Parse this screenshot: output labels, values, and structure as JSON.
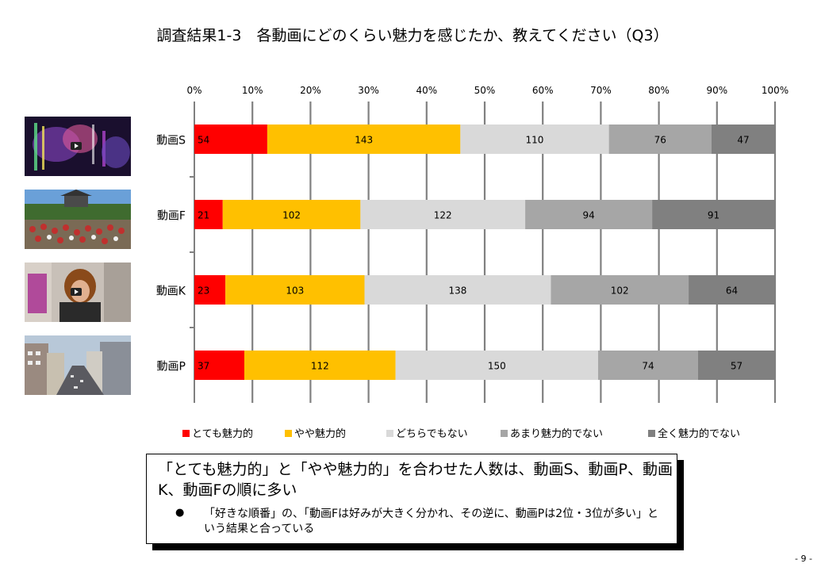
{
  "title": "調査結果1-3　各動画にどのくらい魅力を感じたか、教えてください（Q3）",
  "chart_data": {
    "type": "bar",
    "orientation": "horizontal",
    "stacked": "percent",
    "x_ticks": [
      "0%",
      "10%",
      "20%",
      "30%",
      "40%",
      "50%",
      "60%",
      "70%",
      "80%",
      "90%",
      "100%"
    ],
    "xlim": [
      0,
      100
    ],
    "categories": [
      "動画S",
      "動画F",
      "動画K",
      "動画P"
    ],
    "series": [
      {
        "name": "とても魅力的",
        "color": "#ff0000",
        "values": [
          54,
          21,
          23,
          37
        ]
      },
      {
        "name": "やや魅力的",
        "color": "#ffc000",
        "values": [
          143,
          102,
          103,
          112
        ]
      },
      {
        "name": "どちらでもない",
        "color": "#d9d9d9",
        "values": [
          110,
          122,
          138,
          150
        ]
      },
      {
        "name": "あまり魅力的でない",
        "color": "#a6a6a6",
        "values": [
          76,
          94,
          102,
          74
        ]
      },
      {
        "name": "全く魅力的でない",
        "color": "#808080",
        "values": [
          47,
          91,
          64,
          57
        ]
      }
    ],
    "grid": true,
    "legend_position": "bottom"
  },
  "summary": {
    "headline": "「とても魅力的」と「やや魅力的」を合わせた人数は、動画S、動画P、動画K、動画Fの順に多い",
    "bullet_symbol": "●",
    "bullet_text": "「好きな順番」の、「動画Fは好みが大きく分かれ、その逆に、動画Pは2位・3位が多い」という結果と合っている"
  },
  "page_number": "- 9 -",
  "thumbnails": [
    "video-thumbnail-light",
    "video-thumbnail-dancers",
    "video-thumbnail-person",
    "video-thumbnail-city"
  ]
}
